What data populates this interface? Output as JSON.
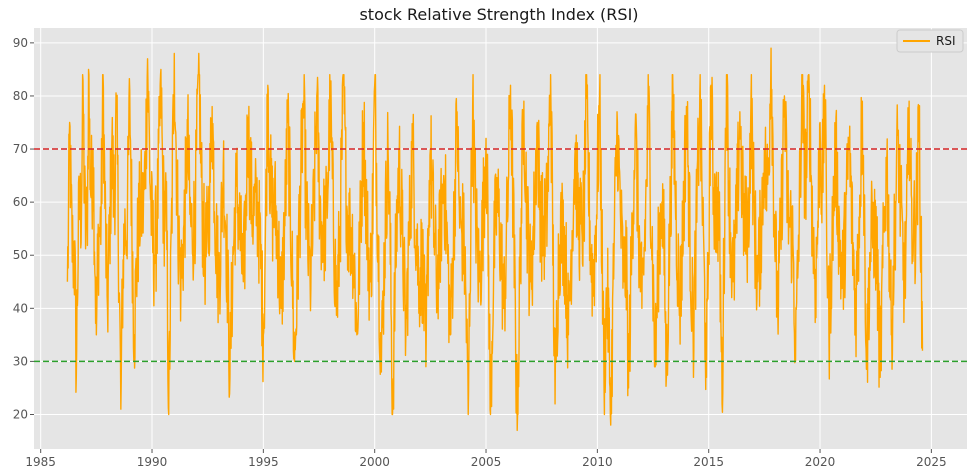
{
  "chart_data": {
    "type": "line",
    "title": "stock Relative Strength Index (RSI)",
    "xlabel": "",
    "ylabel": "",
    "xlim": [
      1984.7,
      2026.6
    ],
    "ylim": [
      13.5,
      92.8
    ],
    "x_ticks": [
      1985,
      1990,
      1995,
      2000,
      2005,
      2010,
      2015,
      2020,
      2025
    ],
    "y_ticks": [
      20,
      30,
      40,
      50,
      60,
      70,
      80,
      90
    ],
    "grid": true,
    "legend_position": "top-right",
    "series": [
      {
        "name": "RSI",
        "color": "#ffa500",
        "x_start": 1986.2,
        "x_end": 2024.6,
        "min": 17,
        "max": 89,
        "mean": 54,
        "points": [
          [
            1986.2,
            45
          ],
          [
            1986.3,
            75
          ],
          [
            1986.45,
            50
          ],
          [
            1986.6,
            27
          ],
          [
            1986.75,
            60
          ],
          [
            1986.9,
            83
          ],
          [
            1987.05,
            55
          ],
          [
            1987.15,
            85
          ],
          [
            1987.35,
            70
          ],
          [
            1987.5,
            35
          ],
          [
            1987.65,
            55
          ],
          [
            1987.8,
            84
          ],
          [
            1988.0,
            40
          ],
          [
            1988.2,
            72
          ],
          [
            1988.4,
            77
          ],
          [
            1988.6,
            21
          ],
          [
            1988.8,
            55
          ],
          [
            1989.0,
            81
          ],
          [
            1989.2,
            35
          ],
          [
            1989.5,
            60
          ],
          [
            1989.8,
            87
          ],
          [
            1990.1,
            50
          ],
          [
            1990.4,
            85
          ],
          [
            1990.6,
            60
          ],
          [
            1990.75,
            20
          ],
          [
            1991.0,
            88
          ],
          [
            1991.3,
            45
          ],
          [
            1991.6,
            74
          ],
          [
            1991.8,
            55
          ],
          [
            1992.1,
            88
          ],
          [
            1992.4,
            50
          ],
          [
            1992.7,
            78
          ],
          [
            1993.0,
            45
          ],
          [
            1993.2,
            67
          ],
          [
            1993.5,
            27
          ],
          [
            1993.8,
            63
          ],
          [
            1994.1,
            45
          ],
          [
            1994.3,
            76
          ],
          [
            1994.7,
            60
          ],
          [
            1995.0,
            35
          ],
          [
            1995.2,
            82
          ],
          [
            1995.5,
            60
          ],
          [
            1995.8,
            40
          ],
          [
            1996.1,
            75
          ],
          [
            1996.4,
            30
          ],
          [
            1996.8,
            79
          ],
          [
            1997.1,
            45
          ],
          [
            1997.4,
            80
          ],
          [
            1997.7,
            55
          ],
          [
            1998.0,
            80
          ],
          [
            1998.3,
            40
          ],
          [
            1998.6,
            82
          ],
          [
            1998.9,
            55
          ],
          [
            1999.2,
            35
          ],
          [
            1999.5,
            75
          ],
          [
            1999.8,
            45
          ],
          [
            2000.0,
            82
          ],
          [
            2000.3,
            28
          ],
          [
            2000.6,
            70
          ],
          [
            2000.8,
            20
          ],
          [
            2001.1,
            68
          ],
          [
            2001.4,
            35
          ],
          [
            2001.7,
            71
          ],
          [
            2002.0,
            45
          ],
          [
            2002.3,
            29
          ],
          [
            2002.5,
            70
          ],
          [
            2002.8,
            45
          ],
          [
            2003.1,
            65
          ],
          [
            2003.4,
            35
          ],
          [
            2003.7,
            77
          ],
          [
            2003.9,
            55
          ],
          [
            2004.2,
            20
          ],
          [
            2004.4,
            78
          ],
          [
            2004.7,
            45
          ],
          [
            2005.0,
            72
          ],
          [
            2005.2,
            20
          ],
          [
            2005.5,
            60
          ],
          [
            2005.8,
            40
          ],
          [
            2006.1,
            82
          ],
          [
            2006.4,
            17
          ],
          [
            2006.7,
            79
          ],
          [
            2007.0,
            45
          ],
          [
            2007.3,
            75
          ],
          [
            2007.6,
            55
          ],
          [
            2007.9,
            84
          ],
          [
            2008.1,
            22
          ],
          [
            2008.4,
            55
          ],
          [
            2008.7,
            35
          ],
          [
            2009.0,
            70
          ],
          [
            2009.3,
            55
          ],
          [
            2009.5,
            80
          ],
          [
            2009.8,
            45
          ],
          [
            2010.1,
            80
          ],
          [
            2010.3,
            25
          ],
          [
            2010.6,
            18
          ],
          [
            2010.9,
            75
          ],
          [
            2011.2,
            45
          ],
          [
            2011.4,
            25
          ],
          [
            2011.7,
            74
          ],
          [
            2012.0,
            40
          ],
          [
            2012.3,
            78
          ],
          [
            2012.6,
            29
          ],
          [
            2012.9,
            60
          ],
          [
            2013.1,
            27
          ],
          [
            2013.4,
            79
          ],
          [
            2013.7,
            40
          ],
          [
            2014.0,
            78
          ],
          [
            2014.3,
            35
          ],
          [
            2014.6,
            80
          ],
          [
            2014.9,
            27
          ],
          [
            2015.1,
            82
          ],
          [
            2015.4,
            60
          ],
          [
            2015.6,
            22
          ],
          [
            2015.8,
            84
          ],
          [
            2016.1,
            45
          ],
          [
            2016.4,
            77
          ],
          [
            2016.7,
            55
          ],
          [
            2016.9,
            80
          ],
          [
            2017.2,
            45
          ],
          [
            2017.5,
            70
          ],
          [
            2017.8,
            89
          ],
          [
            2018.1,
            40
          ],
          [
            2018.4,
            80
          ],
          [
            2018.7,
            55
          ],
          [
            2018.9,
            30
          ],
          [
            2019.2,
            82
          ],
          [
            2019.5,
            84
          ],
          [
            2019.8,
            45
          ],
          [
            2020.0,
            75
          ],
          [
            2020.2,
            82
          ],
          [
            2020.4,
            35
          ],
          [
            2020.7,
            70
          ],
          [
            2021.0,
            45
          ],
          [
            2021.3,
            72
          ],
          [
            2021.6,
            40
          ],
          [
            2021.9,
            79
          ],
          [
            2022.1,
            30
          ],
          [
            2022.4,
            55
          ],
          [
            2022.7,
            27
          ],
          [
            2023.0,
            68
          ],
          [
            2023.2,
            35
          ],
          [
            2023.5,
            73
          ],
          [
            2023.8,
            45
          ],
          [
            2024.0,
            79
          ],
          [
            2024.2,
            55
          ],
          [
            2024.45,
            76
          ],
          [
            2024.6,
            32
          ]
        ]
      }
    ],
    "reference_lines": [
      {
        "y": 70,
        "color": "#d62728",
        "style": "dashed"
      },
      {
        "y": 30,
        "color": "#2ca02c",
        "style": "dashed"
      }
    ]
  }
}
